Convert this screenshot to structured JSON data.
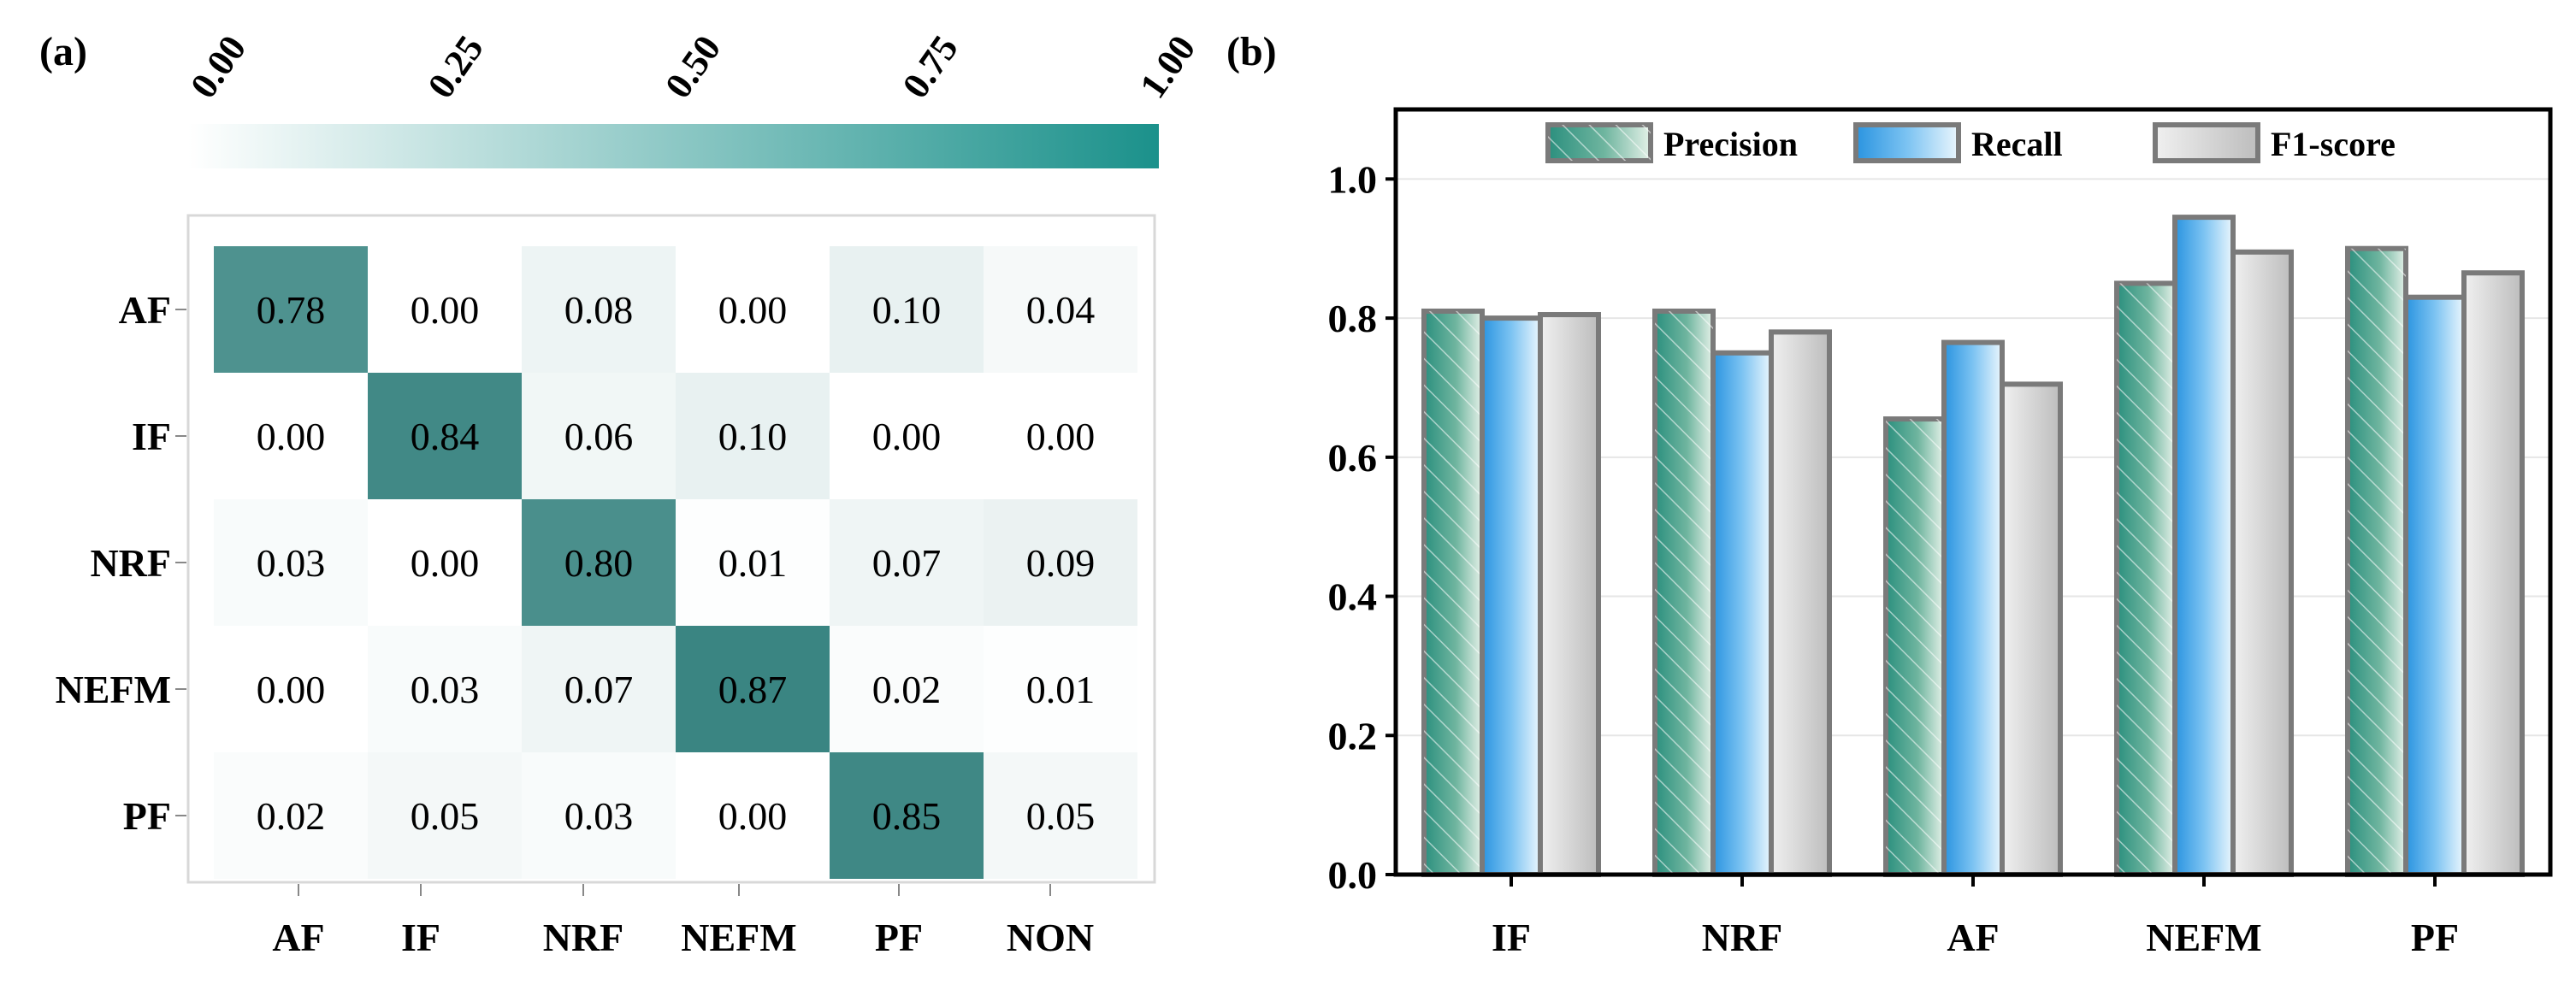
{
  "chart_data": [
    {
      "panel_label": "(a)",
      "type": "heatmap",
      "row_labels": [
        "AF",
        "IF",
        "NRF",
        "NEFM",
        "PF"
      ],
      "col_labels": [
        "AF",
        "IF",
        "NRF",
        "NEFM",
        "PF",
        "NON"
      ],
      "values": [
        [
          0.78,
          0.0,
          0.08,
          0.0,
          0.1,
          0.04
        ],
        [
          0.0,
          0.84,
          0.06,
          0.1,
          0.0,
          0.0
        ],
        [
          0.03,
          0.0,
          0.8,
          0.01,
          0.07,
          0.09
        ],
        [
          0.0,
          0.03,
          0.07,
          0.87,
          0.02,
          0.01
        ],
        [
          0.02,
          0.05,
          0.03,
          0.0,
          0.85,
          0.05
        ]
      ],
      "value_labels": [
        [
          "0.78",
          "0.00",
          "0.08",
          "0.00",
          "0.10",
          "0.04"
        ],
        [
          "0.00",
          "0.84",
          "0.06",
          "0.10",
          "0.00",
          "0.00"
        ],
        [
          "0.03",
          "0.00",
          "0.80",
          "0.01",
          "0.07",
          "0.09"
        ],
        [
          "0.00",
          "0.03",
          "0.07",
          "0.87",
          "0.02",
          "0.01"
        ],
        [
          "0.02",
          "0.05",
          "0.03",
          "0.00",
          "0.85",
          "0.05"
        ]
      ],
      "colorbar": {
        "ticks": [
          "0.00",
          "0.25",
          "0.50",
          "0.75",
          "1.00"
        ],
        "range": [
          0,
          1
        ],
        "color_low": "#ffffff",
        "color_high": "#1b918b"
      },
      "cell_color_high": "#3a8582"
    },
    {
      "panel_label": "(b)",
      "type": "bar",
      "categories": [
        "IF",
        "NRF",
        "AF",
        "NEFM",
        "PF"
      ],
      "series": [
        {
          "name": "Precision",
          "values": [
            0.81,
            0.81,
            0.655,
            0.85,
            0.9
          ],
          "color": "#3a9a85",
          "pattern": "diagonal-hatch"
        },
        {
          "name": "Recall",
          "values": [
            0.8,
            0.75,
            0.765,
            0.945,
            0.83
          ],
          "color": "#4aa8e8"
        },
        {
          "name": "F1-score",
          "values": [
            0.805,
            0.78,
            0.705,
            0.895,
            0.865
          ],
          "color": "#c4c4c4"
        }
      ],
      "ylim": [
        0,
        1.1
      ],
      "yticks": [
        "0.0",
        "0.2",
        "0.4",
        "0.6",
        "0.8",
        "1.0"
      ],
      "grid": true,
      "legend_position": "top"
    }
  ]
}
